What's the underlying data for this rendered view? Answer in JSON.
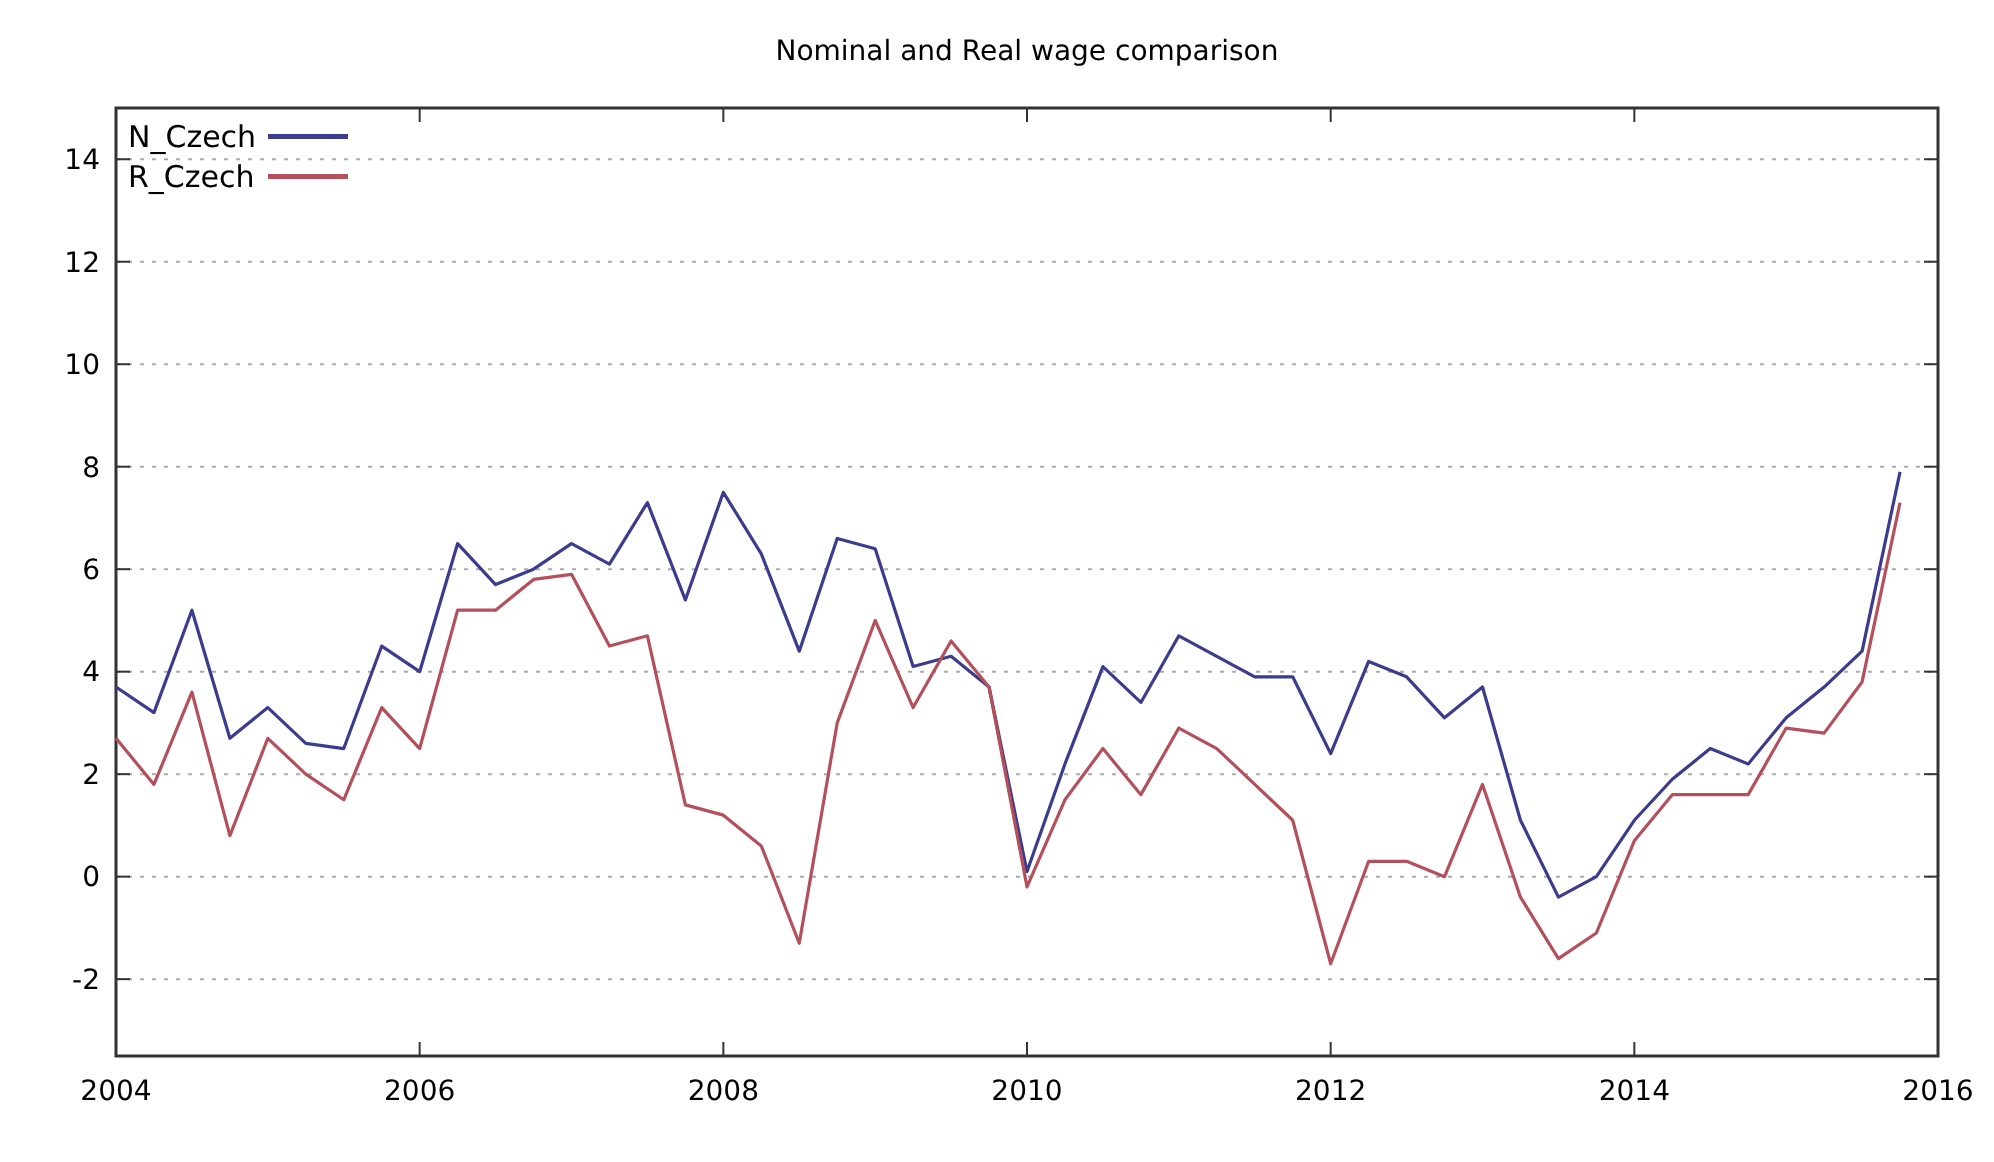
{
  "chart_data": {
    "type": "line",
    "title": "Nominal and Real wage comparison",
    "x": [
      2004,
      2004.25,
      2004.5,
      2004.75,
      2005,
      2005.25,
      2005.5,
      2005.75,
      2006,
      2006.25,
      2006.5,
      2006.75,
      2007,
      2007.25,
      2007.5,
      2007.75,
      2008,
      2008.25,
      2008.5,
      2008.75,
      2009,
      2009.25,
      2009.5,
      2009.75,
      2010,
      2010.25,
      2010.5,
      2010.75,
      2011,
      2011.25,
      2011.5,
      2011.75,
      2012,
      2012.25,
      2012.5,
      2012.75,
      2013,
      2013.25,
      2013.5,
      2013.75,
      2014,
      2014.25,
      2014.5,
      2014.75,
      2015,
      2015.25,
      2015.5,
      2015.75
    ],
    "series": [
      {
        "name": "N_Czech",
        "color": "#3c3c8e",
        "values": [
          3.7,
          3.2,
          5.2,
          2.7,
          3.3,
          2.6,
          2.5,
          4.5,
          4.0,
          6.5,
          5.7,
          6.0,
          6.5,
          6.1,
          7.3,
          5.4,
          7.5,
          6.3,
          4.4,
          6.6,
          6.4,
          4.1,
          4.3,
          3.7,
          0.1,
          2.2,
          4.1,
          3.4,
          4.7,
          4.3,
          3.9,
          3.9,
          2.4,
          4.2,
          3.9,
          3.1,
          3.7,
          1.1,
          -0.4,
          0.0,
          1.1,
          1.9,
          2.5,
          2.2,
          3.1,
          3.7,
          4.4,
          7.9
        ]
      },
      {
        "name": "R_Czech",
        "color": "#b4505c",
        "values": [
          2.7,
          1.8,
          3.6,
          0.8,
          2.7,
          2.0,
          1.5,
          3.3,
          2.5,
          5.2,
          5.2,
          5.8,
          5.9,
          4.5,
          4.7,
          1.4,
          1.2,
          0.6,
          -1.3,
          3.0,
          5.0,
          3.3,
          4.6,
          3.7,
          -0.2,
          1.5,
          2.5,
          1.6,
          2.9,
          2.5,
          1.8,
          1.1,
          -1.7,
          0.3,
          0.3,
          0.0,
          1.8,
          -0.4,
          -1.6,
          -1.1,
          0.7,
          1.6,
          1.6,
          1.6,
          2.9,
          2.8,
          3.8,
          7.3
        ]
      }
    ],
    "xlim": [
      2004,
      2016
    ],
    "xticks": [
      2004,
      2006,
      2008,
      2010,
      2012,
      2014,
      2016
    ],
    "ylim": [
      -3.5,
      15
    ],
    "yticks": [
      -2,
      0,
      2,
      4,
      6,
      8,
      10,
      12,
      14
    ],
    "grid": "y",
    "legend": "top left",
    "line_style": "solid",
    "marker": "none"
  }
}
